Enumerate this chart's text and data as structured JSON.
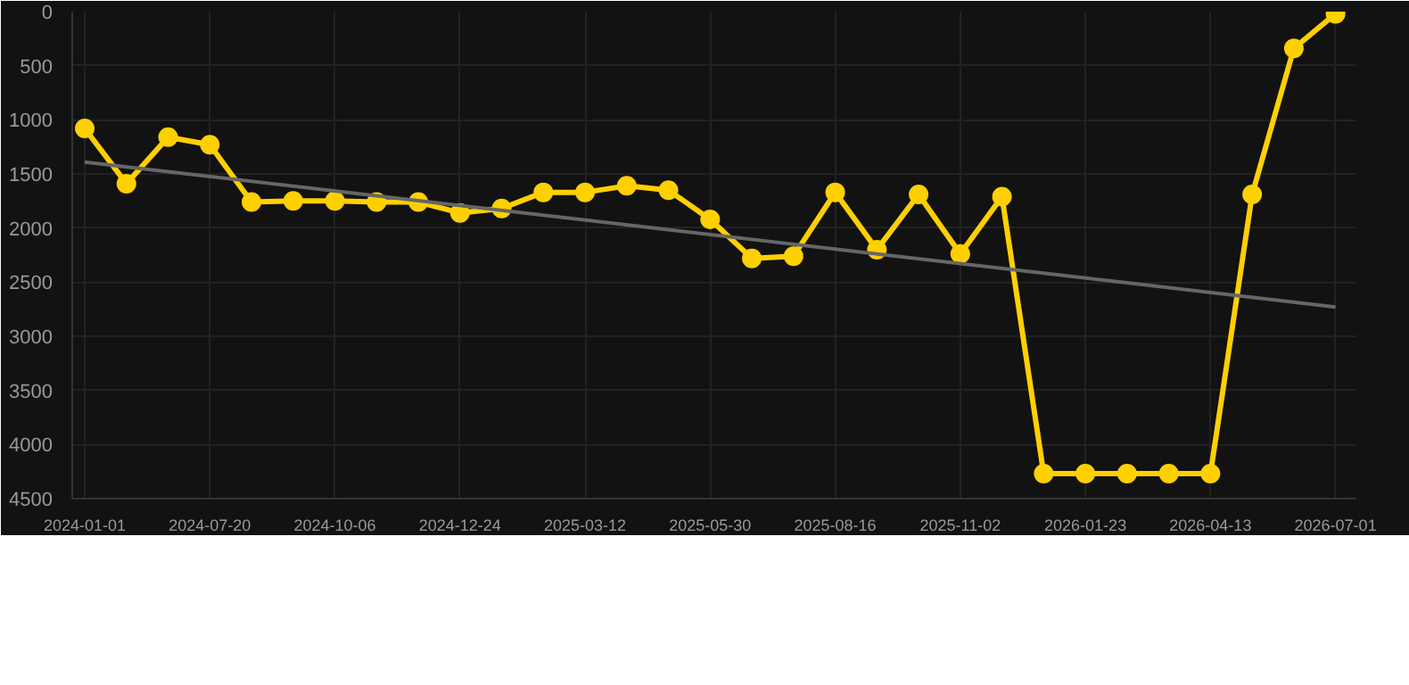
{
  "chart_data": {
    "type": "line",
    "categories": [
      "2024-01-01",
      null,
      null,
      "2024-07-20",
      null,
      null,
      "2024-10-06",
      null,
      null,
      "2024-12-24",
      null,
      null,
      "2025-03-12",
      null,
      null,
      "2025-05-30",
      null,
      null,
      "2025-08-16",
      null,
      null,
      "2025-11-02",
      null,
      null,
      "2026-01-23",
      null,
      null,
      "2026-04-13",
      null,
      null,
      "2026-07-01"
    ],
    "series": [
      {
        "color": "#ffd000",
        "marker": "circle",
        "values": [
          1080,
          1590,
          1160,
          1230,
          1760,
          1750,
          1750,
          1760,
          1760,
          1860,
          1820,
          1670,
          1670,
          1610,
          1650,
          1920,
          2280,
          2260,
          1670,
          2200,
          1690,
          2240,
          1710,
          4270,
          4270,
          4270,
          4270,
          4270,
          1690,
          340,
          20
        ]
      },
      {
        "type": "line",
        "color": "#666666",
        "marker": "none",
        "values": [
          1390,
          null,
          null,
          null,
          null,
          null,
          null,
          null,
          null,
          null,
          null,
          null,
          null,
          null,
          null,
          null,
          null,
          null,
          null,
          null,
          null,
          null,
          null,
          null,
          null,
          null,
          null,
          null,
          null,
          null,
          2730
        ]
      }
    ],
    "ylim": [
      4500,
      0
    ],
    "yticks": [
      0,
      500,
      1000,
      1500,
      2000,
      2500,
      3000,
      3500,
      4000,
      4500
    ],
    "grid": true
  }
}
